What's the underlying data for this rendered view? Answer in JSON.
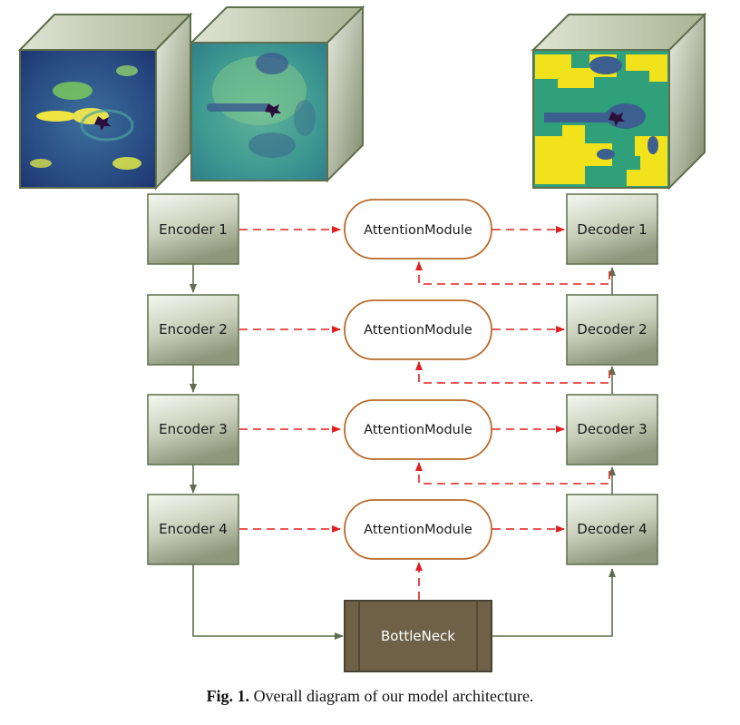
{
  "encoders": [
    "Encoder 1",
    "Encoder 2",
    "Encoder 3",
    "Encoder 4"
  ],
  "attention": [
    "AttentionModule",
    "AttentionModule",
    "AttentionModule",
    "AttentionModule"
  ],
  "decoders": [
    "Decoder 1",
    "Decoder 2",
    "Decoder 3",
    "Decoder 4"
  ],
  "bottleneck": "BottleNeck",
  "caption": {
    "label": "Fig. 1.",
    "text": "Overall diagram of our model architecture."
  },
  "colors": {
    "block_fill_top": "#f4f6ee",
    "block_fill_bottom": "#9aa28a",
    "block_border": "#5f6e4b",
    "attention_border": "#b86a2a",
    "bottleneck_fill": "#6e6148",
    "bottleneck_border": "#4a402e",
    "skip_arrow": "#e02020",
    "flow_arrow": "#5f6e4b"
  }
}
